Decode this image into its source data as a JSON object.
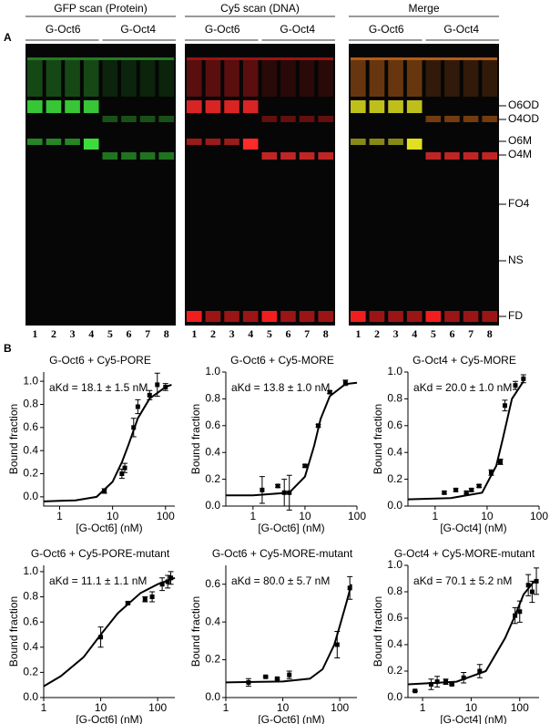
{
  "panel_a": {
    "letter": "A",
    "scans": [
      "GFP scan (Protein)",
      "Cy5 scan (DNA)",
      "Merge"
    ],
    "groups": [
      "G-Oct6",
      "G-Oct4"
    ],
    "lanes": [
      "1",
      "2",
      "3",
      "4",
      "5",
      "6",
      "7",
      "8"
    ],
    "bands": [
      "O6OD",
      "O4OD",
      "O6M",
      "O4M",
      "FO4",
      "NS",
      "FD"
    ]
  },
  "panel_b": {
    "letter": "B"
  },
  "chart_data": [
    {
      "type": "scatter",
      "title": "G-Oct6 + Cy5-PORE",
      "annotation": "aKd = 18.1 ± 1.5 nM",
      "xlabel": "[G-Oct6] (nM)",
      "ylabel": "Bound fraction",
      "xscale": "log",
      "color": "#000000",
      "x": [
        7,
        15,
        17,
        25,
        30,
        50,
        70,
        100
      ],
      "values": [
        0.05,
        0.2,
        0.25,
        0.6,
        0.78,
        0.88,
        0.97,
        0.95
      ],
      "errors": [
        0.02,
        0.04,
        0.04,
        0.08,
        0.06,
        0.04,
        0.1,
        0.03
      ],
      "fit_x": [
        0.5,
        1,
        2,
        5,
        10,
        15,
        20,
        30,
        50,
        100,
        130
      ],
      "fit_y": [
        -0.04,
        -0.035,
        -0.03,
        0.0,
        0.13,
        0.3,
        0.45,
        0.68,
        0.85,
        0.95,
        0.97
      ],
      "xlim": [
        0.5,
        150
      ],
      "ylim": [
        -0.08,
        1.08
      ],
      "xticks": [
        1,
        10,
        100
      ],
      "yticks": [
        {
          "value": 0,
          "label": "0.0"
        },
        0.2,
        0.4,
        0.6,
        0.8,
        {
          "value": 1,
          "label": "1.0"
        }
      ]
    },
    {
      "type": "scatter",
      "title": "G-Oct6 + Cy5-MORE",
      "annotation": "aKd = 13.8 ± 1.0 nM",
      "xlabel": "[G-Oct6] (nM)",
      "ylabel": "Bound fraction",
      "xscale": "log",
      "color": "#000000",
      "x": [
        1.5,
        3,
        4,
        5,
        10,
        18,
        30,
        60
      ],
      "values": [
        0.12,
        0.15,
        0.1,
        0.1,
        0.3,
        0.6,
        0.85,
        0.92
      ],
      "errors": [
        0.1,
        0.01,
        0.1,
        0.13,
        0.01,
        0.01,
        0.01,
        0.02
      ],
      "fit_x": [
        0.3,
        1,
        5,
        10,
        15,
        20,
        30,
        60,
        100
      ],
      "fit_y": [
        0.08,
        0.08,
        0.1,
        0.22,
        0.45,
        0.65,
        0.82,
        0.91,
        0.92
      ],
      "xlim": [
        0.3,
        100
      ],
      "ylim": [
        0,
        1.0
      ],
      "xticks": [
        1,
        10,
        100
      ],
      "yticks": [
        {
          "value": 0,
          "label": "0.0"
        },
        0.2,
        0.4,
        0.6,
        0.8,
        {
          "value": 1,
          "label": "1.0"
        }
      ]
    },
    {
      "type": "scatter",
      "title": "G-Oct4 + Cy5-MORE",
      "annotation": "aKd = 20.0 ± 1.0 nM",
      "xlabel": "[G-Oct4] (nM)",
      "ylabel": "Bound fraction",
      "xscale": "log",
      "color": "#000000",
      "x": [
        1.5,
        2.5,
        4,
        5,
        7,
        12,
        18,
        22,
        35,
        50
      ],
      "values": [
        0.1,
        0.12,
        0.1,
        0.12,
        0.15,
        0.25,
        0.33,
        0.75,
        0.9,
        0.95
      ],
      "errors": [
        0.01,
        0.01,
        0.01,
        0.01,
        0.01,
        0.02,
        0.02,
        0.04,
        0.03,
        0.03
      ],
      "fit_x": [
        0.3,
        2,
        8,
        15,
        20,
        30,
        50
      ],
      "fit_y": [
        0.05,
        0.06,
        0.1,
        0.3,
        0.5,
        0.8,
        0.93
      ],
      "xlim": [
        0.3,
        100
      ],
      "ylim": [
        0,
        1.0
      ],
      "xticks": [
        1,
        10,
        100
      ],
      "yticks": [
        {
          "value": 0,
          "label": "0.0"
        },
        0.2,
        0.4,
        0.6,
        0.8,
        {
          "value": 1,
          "label": "1.0"
        }
      ]
    },
    {
      "type": "scatter",
      "title": "G-Oct6 + Cy5-PORE-mutant",
      "annotation": "aKd = 11.1 ± 1.1 nM",
      "xlabel": "[G-Oct6] (nM)",
      "ylabel": "Bound fraction",
      "xscale": "log",
      "color": "#000000",
      "x": [
        10,
        30,
        60,
        80,
        120,
        150,
        170
      ],
      "values": [
        0.48,
        0.75,
        0.78,
        0.8,
        0.9,
        0.92,
        0.95
      ],
      "errors": [
        0.08,
        0.01,
        0.02,
        0.04,
        0.05,
        0.05,
        0.05
      ],
      "fit_x": [
        1,
        2,
        5,
        10,
        20,
        50,
        100,
        200
      ],
      "fit_y": [
        0.09,
        0.17,
        0.32,
        0.5,
        0.67,
        0.83,
        0.9,
        0.95
      ],
      "xlim": [
        1,
        200
      ],
      "ylim": [
        0,
        1.05
      ],
      "xticks": [
        1,
        10,
        100
      ],
      "yticks": [
        {
          "value": 0,
          "label": "0.0"
        },
        0.2,
        0.4,
        0.6,
        0.8,
        {
          "value": 1,
          "label": "1.0"
        }
      ]
    },
    {
      "type": "scatter",
      "title": "G-Oct6 + Cy5-MORE-mutant",
      "annotation": "aKd = 80.0 ± 5.7 nM",
      "xlabel": "[G-Oct6] (nM)",
      "ylabel": "Bound fraction",
      "xscale": "log",
      "color": "#000000",
      "x": [
        2.5,
        5,
        8,
        13,
        90,
        150
      ],
      "values": [
        0.08,
        0.11,
        0.1,
        0.12,
        0.28,
        0.58
      ],
      "errors": [
        0.02,
        0.005,
        0.005,
        0.02,
        0.07,
        0.06
      ],
      "fit_x": [
        1,
        10,
        30,
        50,
        80,
        100,
        130,
        160
      ],
      "fit_y": [
        0.08,
        0.085,
        0.1,
        0.15,
        0.28,
        0.38,
        0.5,
        0.6
      ],
      "xlim": [
        1,
        200
      ],
      "ylim": [
        0,
        0.7
      ],
      "xticks": [
        1,
        10,
        100
      ],
      "yticks": [
        {
          "value": 0,
          "label": "0.0"
        },
        0.2,
        0.4,
        0.6
      ]
    },
    {
      "type": "scatter",
      "title": "G-Oct4 + Cy5-MORE-mutant",
      "annotation": "aKd = 70.1 ± 5.2 nM",
      "xlabel": "[G-Oct4] (nM)",
      "ylabel": "Bound fraction",
      "xscale": "log",
      "color": "#000000",
      "x": [
        0.7,
        1.5,
        2,
        3,
        4,
        7,
        15,
        80,
        100,
        150,
        180,
        220
      ],
      "values": [
        0.05,
        0.1,
        0.12,
        0.12,
        0.1,
        0.15,
        0.2,
        0.62,
        0.65,
        0.85,
        0.8,
        0.88
      ],
      "errors": [
        0.005,
        0.04,
        0.04,
        0.02,
        0.005,
        0.04,
        0.05,
        0.06,
        0.08,
        0.08,
        0.08,
        0.1
      ],
      "fit_x": [
        0.5,
        5,
        20,
        50,
        80,
        120,
        200
      ],
      "fit_y": [
        0.1,
        0.12,
        0.2,
        0.45,
        0.62,
        0.78,
        0.88
      ],
      "xlim": [
        0.5,
        250
      ],
      "ylim": [
        0,
        1.0
      ],
      "xticks": [
        1,
        10,
        100
      ],
      "yticks": [
        {
          "value": 0,
          "label": "0.0"
        },
        0.2,
        0.4,
        0.6,
        0.8,
        {
          "value": 1,
          "label": "1.0"
        }
      ]
    }
  ]
}
